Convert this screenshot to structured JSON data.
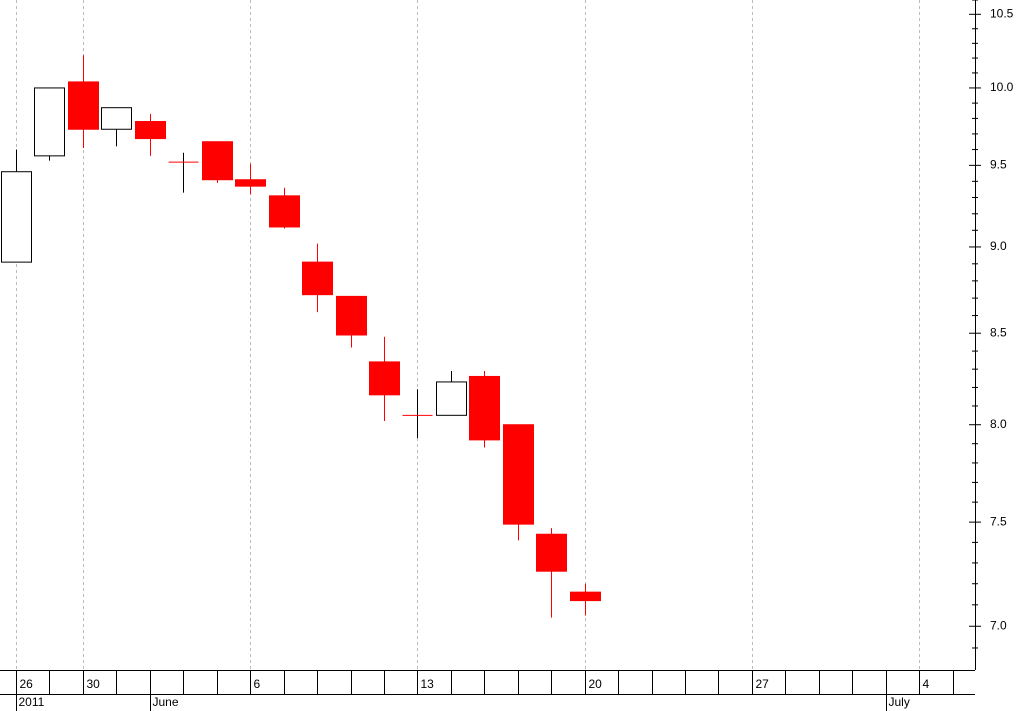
{
  "chart_data": {
    "type": "candlestick",
    "categories": [
      "26",
      null,
      "30",
      null,
      null,
      null,
      null,
      "6",
      null,
      null,
      null,
      null,
      "13",
      null,
      null,
      null,
      null,
      "20",
      null,
      null,
      null,
      null,
      "27",
      null,
      null,
      null,
      null,
      "4",
      null
    ],
    "period_labels": [
      "2011",
      null,
      null,
      null,
      "June",
      null,
      null,
      null,
      null,
      null,
      null,
      null,
      null,
      null,
      null,
      null,
      null,
      null,
      null,
      null,
      null,
      null,
      null,
      null,
      null,
      null,
      "July",
      null,
      null
    ],
    "open": [
      8.91,
      9.56,
      10.04,
      9.73,
      9.78,
      9.52,
      9.65,
      9.41,
      9.31,
      8.91,
      8.71,
      8.34,
      8.05,
      8.05,
      8.26,
      8.0,
      7.44,
      7.16,
      null,
      null,
      null,
      null,
      null,
      null,
      null,
      null,
      null,
      null,
      null
    ],
    "high": [
      9.6,
      10.0,
      10.22,
      9.87,
      9.83,
      9.58,
      9.65,
      9.51,
      9.36,
      9.02,
      8.71,
      8.48,
      8.19,
      8.29,
      8.29,
      8.0,
      7.47,
      7.2,
      null,
      null,
      null,
      null,
      null,
      null,
      null,
      null,
      null,
      null,
      null
    ],
    "low": [
      8.91,
      9.53,
      9.61,
      9.62,
      9.56,
      9.33,
      9.39,
      9.32,
      9.11,
      8.62,
      8.42,
      8.02,
      7.93,
      8.05,
      7.88,
      7.41,
      7.04,
      7.05,
      null,
      null,
      null,
      null,
      null,
      null,
      null,
      null,
      null,
      null,
      null
    ],
    "close": [
      9.46,
      10.0,
      9.73,
      9.87,
      9.67,
      9.52,
      9.41,
      9.37,
      9.12,
      8.72,
      8.49,
      8.16,
      8.05,
      8.23,
      7.92,
      7.49,
      7.26,
      7.12,
      null,
      null,
      null,
      null,
      null,
      null,
      null,
      null,
      null,
      null,
      null
    ],
    "up_color": "#ffffff",
    "down_color": "#ff0000",
    "ylim": [
      6.8,
      10.6
    ],
    "log_scale": true,
    "grid": true,
    "yticks": [
      {
        "value": 7,
        "label": "7.0"
      },
      7.5,
      {
        "value": 8,
        "label": "8.0"
      },
      8.5,
      {
        "value": 9,
        "label": "9.0"
      },
      9.5,
      {
        "value": 10,
        "label": "10.0"
      },
      10.5
    ],
    "minor_yticks": [
      6.9,
      7.1,
      7.2,
      7.3,
      7.4,
      7.6,
      7.7,
      7.8,
      7.9,
      8.1,
      8.2,
      8.3,
      8.4,
      8.6,
      8.7,
      8.8,
      8.9,
      9.1,
      9.2,
      9.3,
      9.4,
      9.6,
      9.7,
      9.8,
      9.9,
      10.1,
      10.2,
      10.3,
      10.4,
      10.6
    ]
  }
}
